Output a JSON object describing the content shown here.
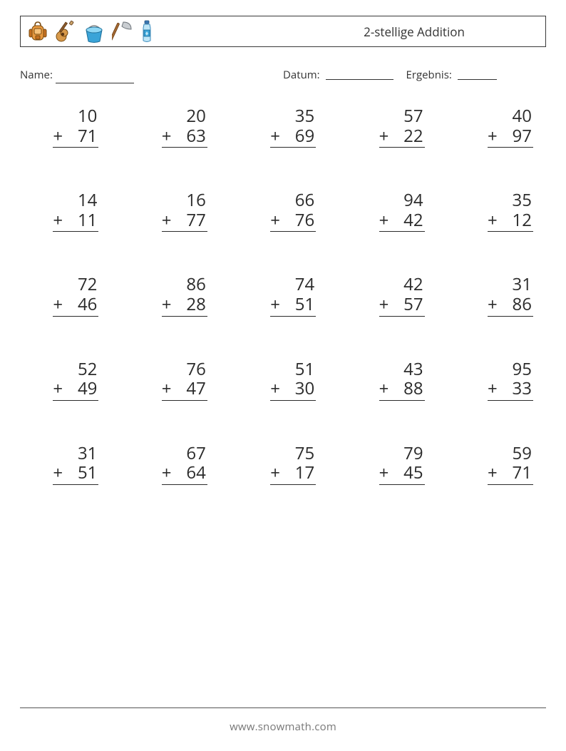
{
  "header": {
    "title": "2-stellige Addition",
    "icons": [
      "backpack-icon",
      "guitar-icon",
      "bucket-icon",
      "axe-icon",
      "bottle-icon"
    ]
  },
  "meta": {
    "name_label": "Name:",
    "date_label": "Datum:",
    "result_label": "Ergebnis:"
  },
  "worksheet": {
    "type": "addition-column",
    "operator": "+",
    "rows": 5,
    "cols": 5,
    "font_size_pt": 18,
    "text_color": "#2b2b2b",
    "rule_color": "#2b2b2b",
    "problems": [
      {
        "a": 10,
        "b": 71
      },
      {
        "a": 20,
        "b": 63
      },
      {
        "a": 35,
        "b": 69
      },
      {
        "a": 57,
        "b": 22
      },
      {
        "a": 40,
        "b": 97
      },
      {
        "a": 14,
        "b": 11
      },
      {
        "a": 16,
        "b": 77
      },
      {
        "a": 66,
        "b": 76
      },
      {
        "a": 94,
        "b": 42
      },
      {
        "a": 35,
        "b": 12
      },
      {
        "a": 72,
        "b": 46
      },
      {
        "a": 86,
        "b": 28
      },
      {
        "a": 74,
        "b": 51
      },
      {
        "a": 42,
        "b": 57
      },
      {
        "a": 31,
        "b": 86
      },
      {
        "a": 52,
        "b": 49
      },
      {
        "a": 76,
        "b": 47
      },
      {
        "a": 51,
        "b": 30
      },
      {
        "a": 43,
        "b": 88
      },
      {
        "a": 95,
        "b": 33
      },
      {
        "a": 31,
        "b": 51
      },
      {
        "a": 67,
        "b": 64
      },
      {
        "a": 75,
        "b": 17
      },
      {
        "a": 79,
        "b": 45
      },
      {
        "a": 59,
        "b": 71
      }
    ]
  },
  "footer": {
    "text": "www.snowmath.com"
  },
  "colors": {
    "page_bg": "#ffffff",
    "border": "#393939",
    "footer_text": "#777777"
  }
}
